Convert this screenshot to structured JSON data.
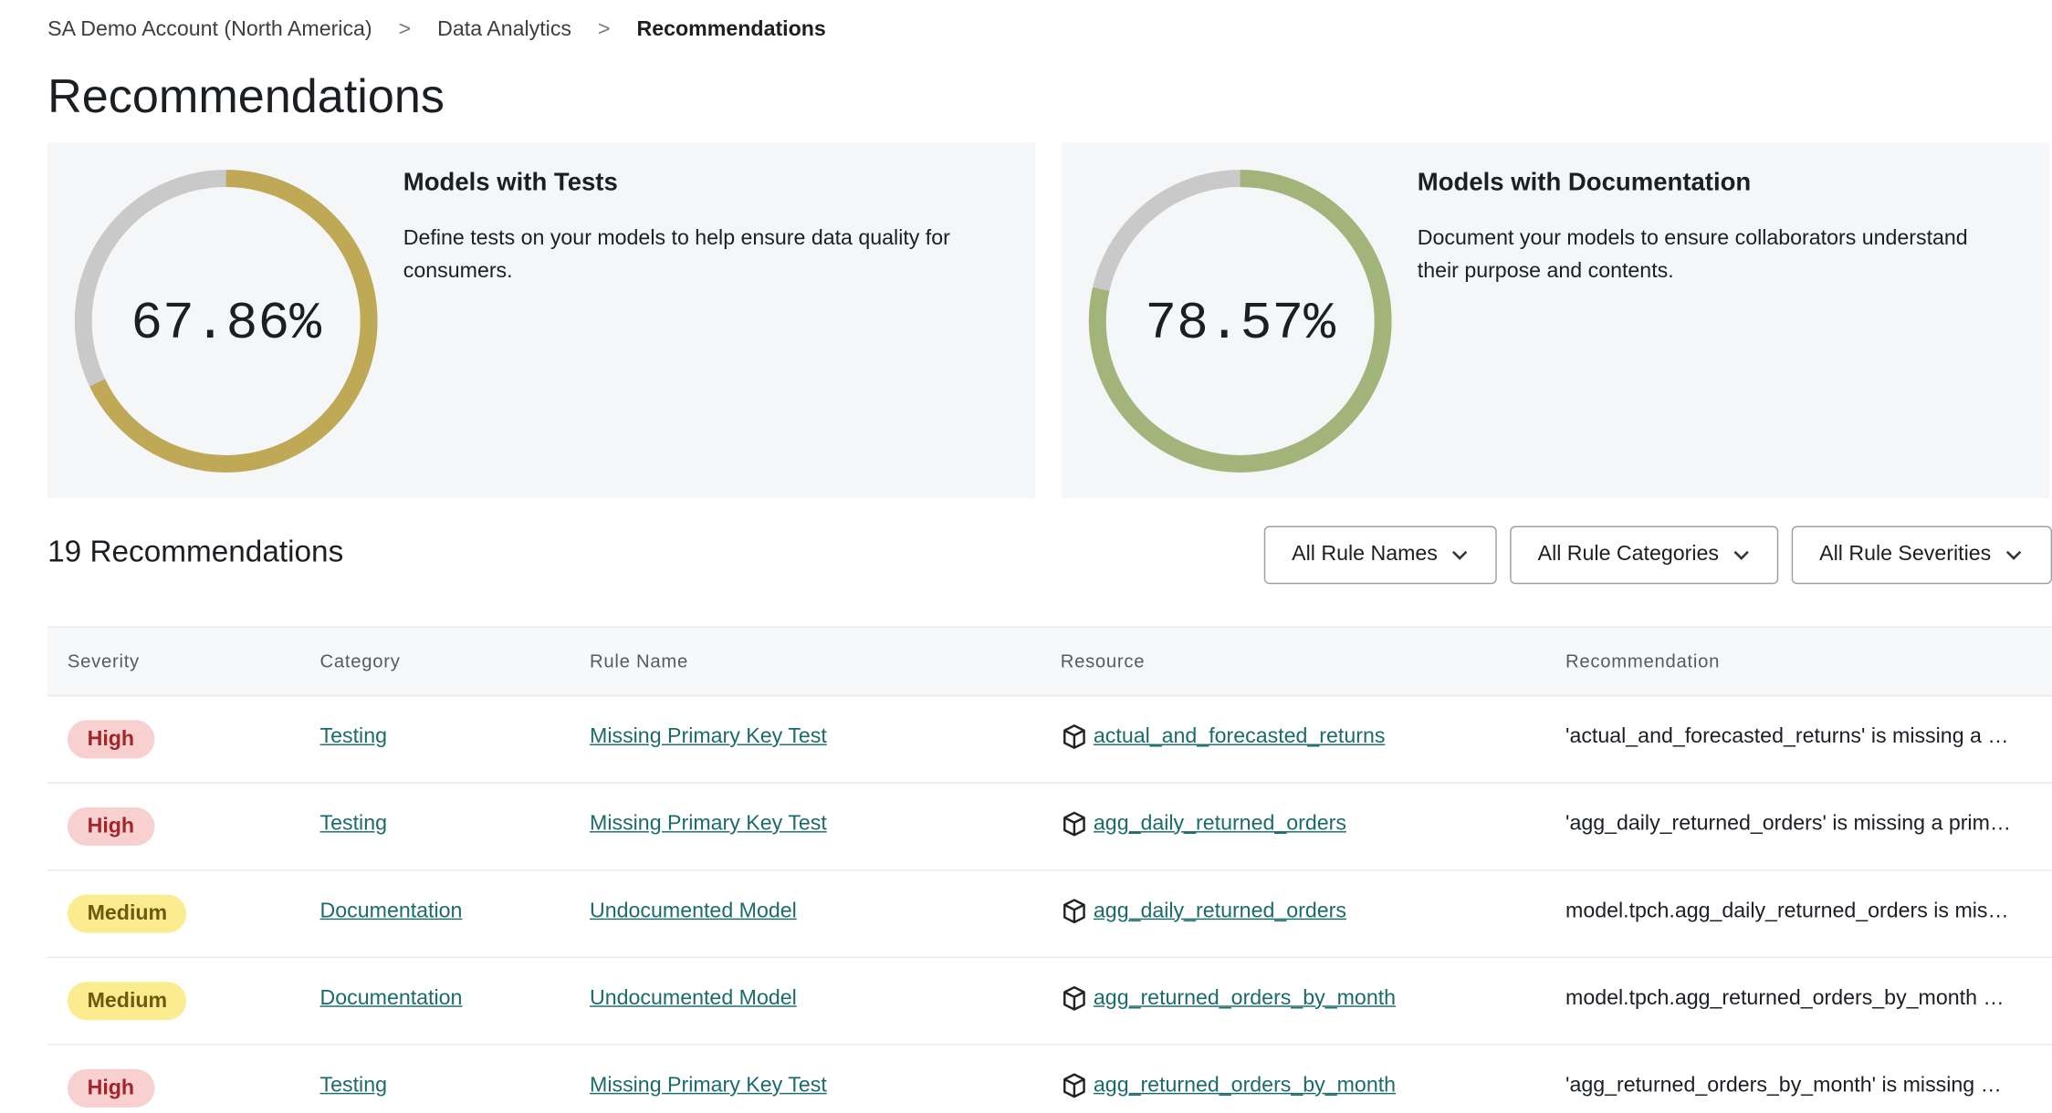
{
  "breadcrumb": [
    "SA Demo Account (North America)",
    "Data Analytics",
    "Recommendations"
  ],
  "title": "Recommendations",
  "cards": [
    {
      "title": "Models with Tests",
      "description": "Define tests on your models to help ensure data quality for consumers.",
      "percent": 67.86,
      "percent_label": "67.86%",
      "color": "#bfa957"
    },
    {
      "title": "Models with Documentation",
      "description": "Document your models to ensure collaborators understand their purpose and contents.",
      "percent": 78.57,
      "percent_label": "78.57%",
      "color": "#a3b47a"
    }
  ],
  "count_label": "19 Recommendations",
  "filters": [
    "All Rule Names",
    "All Rule Categories",
    "All Rule Severities"
  ],
  "table": {
    "headers": [
      "Severity",
      "Category",
      "Rule Name",
      "Resource",
      "Recommendation"
    ],
    "rows": [
      [
        "High",
        "Testing",
        "Missing Primary Key Test",
        "actual_and_forecasted_returns",
        "'actual_and_forecasted_returns' is missing a …"
      ],
      [
        "High",
        "Testing",
        "Missing Primary Key Test",
        "agg_daily_returned_orders",
        "'agg_daily_returned_orders' is missing a prim…"
      ],
      [
        "Medium",
        "Documentation",
        "Undocumented Model",
        "agg_daily_returned_orders",
        "model.tpch.agg_daily_returned_orders is mis…"
      ],
      [
        "Medium",
        "Documentation",
        "Undocumented Model",
        "agg_returned_orders_by_month",
        "model.tpch.agg_returned_orders_by_month …"
      ],
      [
        "High",
        "Testing",
        "Missing Primary Key Test",
        "agg_returned_orders_by_month",
        "'agg_returned_orders_by_month' is missing …"
      ]
    ]
  }
}
